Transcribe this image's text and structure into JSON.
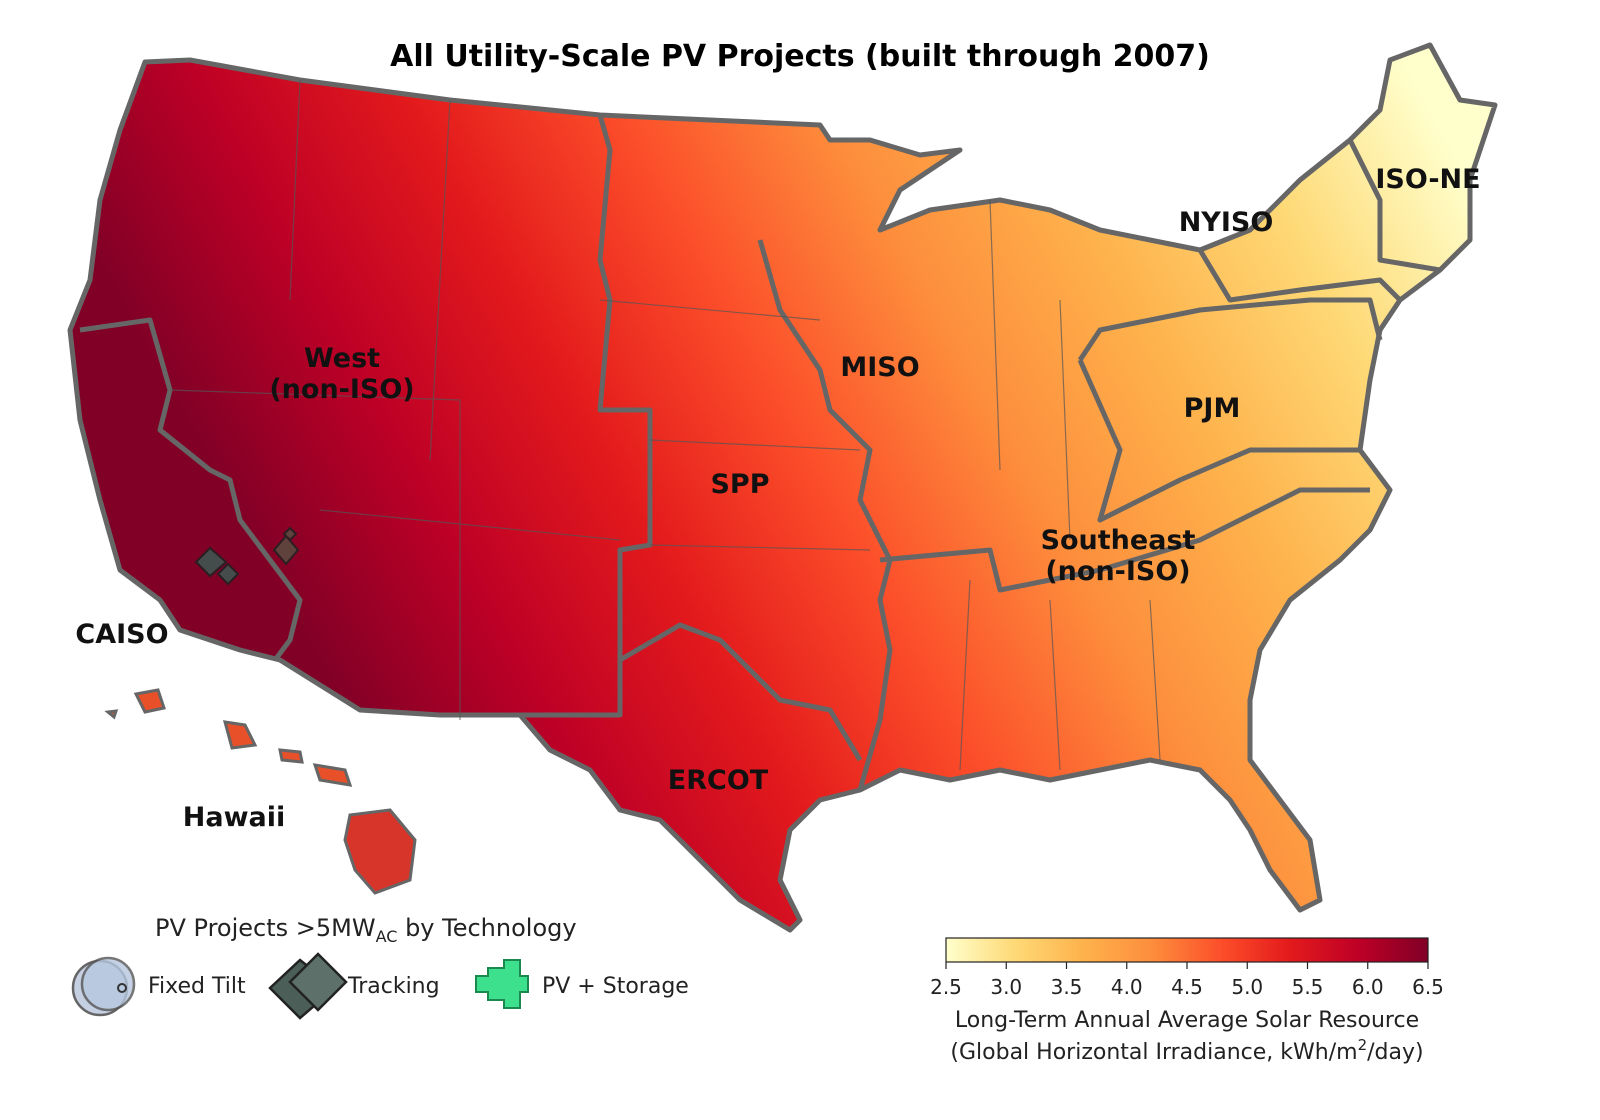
{
  "title": "All Utility-Scale PV Projects (built through 2007)",
  "regions": [
    "West",
    "(non-ISO)",
    "CAISO",
    "SPP",
    "MISO",
    "ERCOT",
    "Southeast",
    "(non-ISO)",
    "PJM",
    "NYISO",
    "ISO-NE",
    "Hawaii"
  ],
  "legend": {
    "title": [
      "PV Projects >5MW",
      "AC",
      " by Technology"
    ],
    "items": [
      "Fixed Tilt",
      "Tracking",
      "PV + Storage"
    ]
  },
  "colorbar": {
    "lim": [
      2.5,
      6.5
    ],
    "ticks": [
      2.5,
      {
        "value": 3,
        "label": "3.0"
      },
      3.5,
      {
        "value": 4,
        "label": "4.0"
      },
      4.5,
      {
        "value": 5,
        "label": "5.0"
      },
      5.5,
      {
        "value": 6,
        "label": "6.0"
      },
      6.5
    ],
    "colors": [
      "#ffffcc",
      "#fed976",
      "#feb24c",
      "#fd8d3c",
      "#fc4e2a",
      "#e31a1c",
      "#bd0026",
      "#800026"
    ],
    "label": [
      "Long-Term Annual Average Solar Resource",
      "(Global Horizontal Irradiance, kWh/m",
      "2",
      "/day)"
    ]
  }
}
